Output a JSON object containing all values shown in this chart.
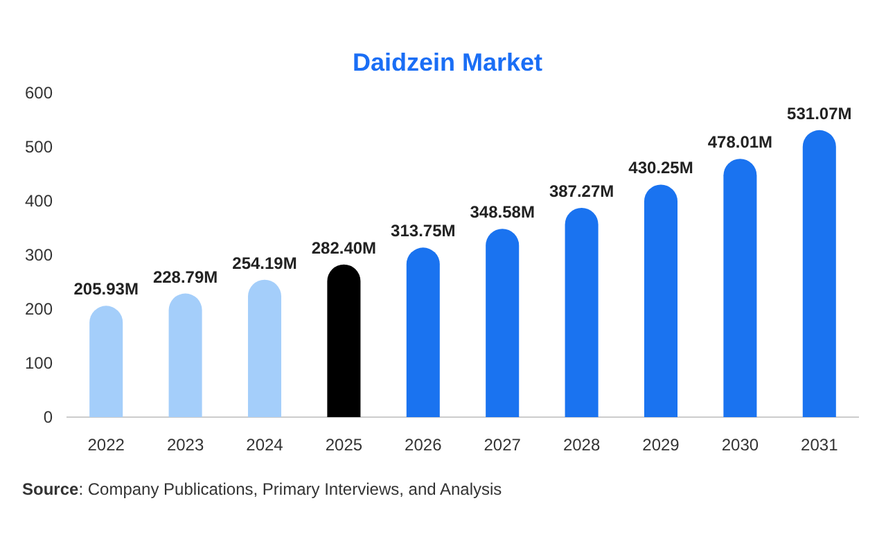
{
  "chart_data": {
    "type": "bar",
    "title": "Daidzein Market",
    "categories": [
      "2022",
      "2023",
      "2024",
      "2025",
      "2026",
      "2027",
      "2028",
      "2029",
      "2030",
      "2031"
    ],
    "values": [
      205.93,
      228.79,
      254.19,
      282.4,
      313.75,
      348.58,
      387.27,
      430.25,
      478.01,
      531.07
    ],
    "value_labels": [
      "205.93M",
      "228.79M",
      "254.19M",
      "282.40M",
      "313.75M",
      "348.58M",
      "387.27M",
      "430.25M",
      "478.01M",
      "531.07M"
    ],
    "colors": [
      "#a4cefa",
      "#a4cefa",
      "#a4cefa",
      "#000000",
      "#1a73f0",
      "#1a73f0",
      "#1a73f0",
      "#1a73f0",
      "#1a73f0",
      "#1a73f0"
    ],
    "ylim": [
      0,
      600
    ],
    "yticks": [
      0,
      100,
      200,
      300,
      400,
      500,
      600
    ],
    "grid": false,
    "annotations": [
      "Source: Company Publications, Primary Interviews, and Analysis"
    ]
  }
}
